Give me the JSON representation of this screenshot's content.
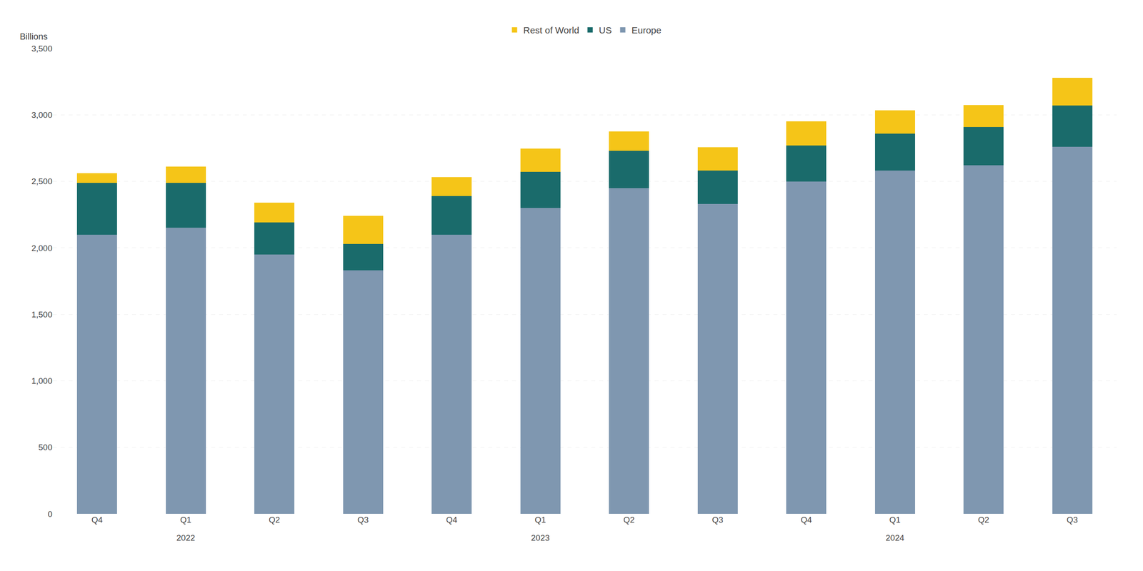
{
  "chart_data": {
    "type": "bar",
    "stacked": true,
    "categories": [
      "Q4",
      "Q1",
      "Q2",
      "Q3",
      "Q4",
      "Q1",
      "Q2",
      "Q3",
      "Q4",
      "Q1",
      "Q2",
      "Q3"
    ],
    "series": [
      {
        "name": "Europe",
        "color": "#7F97B0",
        "values": [
          2100,
          2150,
          1950,
          1830,
          2100,
          2300,
          2450,
          2330,
          2500,
          2580,
          2620,
          2760
        ]
      },
      {
        "name": "US",
        "color": "#1A6B6B",
        "values": [
          390,
          340,
          240,
          200,
          290,
          270,
          280,
          250,
          270,
          280,
          290,
          310
        ]
      },
      {
        "name": "Rest of World",
        "color": "#F5C518",
        "values": [
          70,
          120,
          150,
          210,
          140,
          175,
          145,
          175,
          180,
          175,
          165,
          210
        ]
      }
    ],
    "annotations": [
      {
        "text": "2022",
        "x": 1
      },
      {
        "text": "2023",
        "x": 5
      },
      {
        "text": "2024",
        "x": 9
      }
    ],
    "ylabel": "Billions",
    "ylim": [
      0,
      3500
    ],
    "yticks": [
      0,
      500,
      {
        "value": 1000,
        "label": "1,000"
      },
      {
        "value": 1500,
        "label": "1,500"
      },
      {
        "value": 2000,
        "label": "2,000"
      },
      {
        "value": 2500,
        "label": "2,500"
      },
      {
        "value": 3000,
        "label": "3,000"
      },
      {
        "value": 3500,
        "label": "3,500"
      }
    ],
    "grid": true,
    "legend": "top"
  }
}
